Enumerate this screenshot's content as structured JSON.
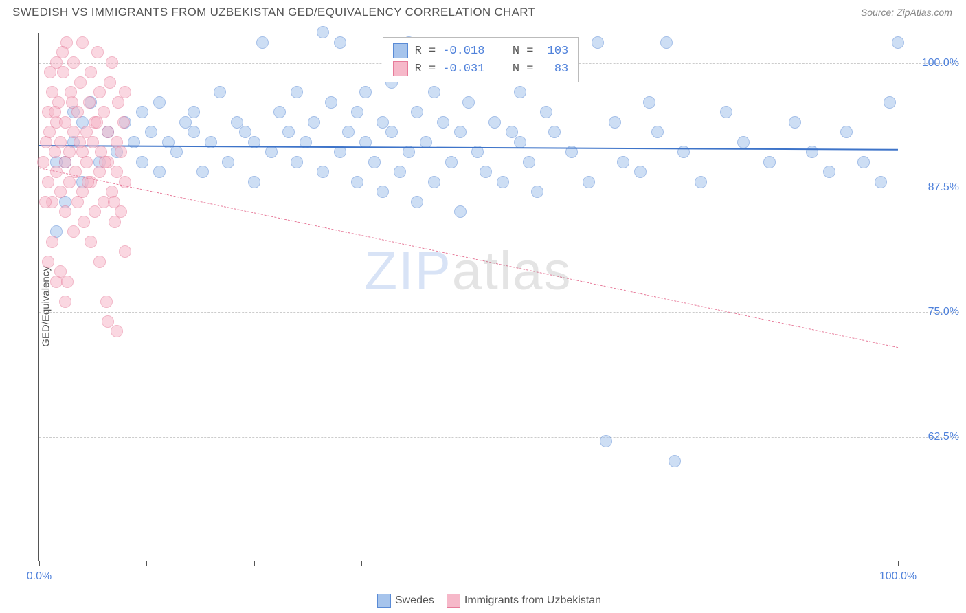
{
  "title": "SWEDISH VS IMMIGRANTS FROM UZBEKISTAN GED/EQUIVALENCY CORRELATION CHART",
  "source_label": "Source: ZipAtlas.com",
  "ylabel": "GED/Equivalency",
  "watermark_bold": "ZIP",
  "watermark_thin": "atlas",
  "chart": {
    "type": "scatter",
    "xlim": [
      0,
      100
    ],
    "ylim": [
      50,
      103
    ],
    "background_color": "#ffffff",
    "grid_color": "#cccccc",
    "axis_color": "#555555",
    "tick_label_color": "#5082db",
    "tick_fontsize": 16,
    "axis_label_fontsize": 15,
    "marker_radius": 9,
    "yticks": [
      {
        "v": 62.5,
        "label": "62.5%"
      },
      {
        "v": 75.0,
        "label": "75.0%"
      },
      {
        "v": 87.5,
        "label": "87.5%"
      },
      {
        "v": 100.0,
        "label": "100.0%"
      }
    ],
    "xticks": [
      0,
      12.5,
      25,
      37.5,
      50,
      62.5,
      75,
      87.5,
      100
    ],
    "xtick_labels": {
      "0": "0.0%",
      "100": "100.0%"
    },
    "series": [
      {
        "name": "Swedes",
        "fill_color": "#a6c4ec",
        "stroke_color": "#5a8bd6",
        "fill_opacity": 0.55,
        "regression": {
          "y_at_x0": 91.8,
          "y_at_x100": 91.4,
          "color": "#3e74c9",
          "width": 2,
          "dash": "solid"
        },
        "R": "-0.018",
        "N": "103",
        "points": [
          [
            2,
            83
          ],
          [
            3,
            90
          ],
          [
            4,
            92
          ],
          [
            5,
            88
          ],
          [
            5,
            94
          ],
          [
            6,
            96
          ],
          [
            7,
            90
          ],
          [
            8,
            93
          ],
          [
            9,
            91
          ],
          [
            10,
            94
          ],
          [
            11,
            92
          ],
          [
            12,
            95
          ],
          [
            12,
            90
          ],
          [
            13,
            93
          ],
          [
            14,
            96
          ],
          [
            14,
            89
          ],
          [
            15,
            92
          ],
          [
            16,
            91
          ],
          [
            17,
            94
          ],
          [
            18,
            95
          ],
          [
            18,
            93
          ],
          [
            19,
            89
          ],
          [
            20,
            92
          ],
          [
            21,
            97
          ],
          [
            22,
            90
          ],
          [
            23,
            94
          ],
          [
            24,
            93
          ],
          [
            25,
            88
          ],
          [
            25,
            92
          ],
          [
            26,
            102
          ],
          [
            27,
            91
          ],
          [
            28,
            95
          ],
          [
            29,
            93
          ],
          [
            30,
            90
          ],
          [
            30,
            97
          ],
          [
            31,
            92
          ],
          [
            32,
            94
          ],
          [
            33,
            89
          ],
          [
            33,
            103
          ],
          [
            34,
            96
          ],
          [
            35,
            91
          ],
          [
            35,
            102
          ],
          [
            36,
            93
          ],
          [
            37,
            88
          ],
          [
            37,
            95
          ],
          [
            38,
            92
          ],
          [
            38,
            97
          ],
          [
            39,
            90
          ],
          [
            40,
            94
          ],
          [
            40,
            87
          ],
          [
            41,
            93
          ],
          [
            41,
            98
          ],
          [
            42,
            89
          ],
          [
            43,
            91
          ],
          [
            43,
            102
          ],
          [
            44,
            95
          ],
          [
            44,
            86
          ],
          [
            45,
            92
          ],
          [
            46,
            97
          ],
          [
            46,
            88
          ],
          [
            47,
            94
          ],
          [
            48,
            90
          ],
          [
            49,
            93
          ],
          [
            49,
            85
          ],
          [
            50,
            96
          ],
          [
            51,
            91
          ],
          [
            52,
            89
          ],
          [
            53,
            94
          ],
          [
            54,
            88
          ],
          [
            55,
            93
          ],
          [
            56,
            92
          ],
          [
            56,
            97
          ],
          [
            57,
            90
          ],
          [
            58,
            87
          ],
          [
            59,
            95
          ],
          [
            60,
            93
          ],
          [
            62,
            91
          ],
          [
            64,
            88
          ],
          [
            65,
            102
          ],
          [
            66,
            62
          ],
          [
            67,
            94
          ],
          [
            68,
            90
          ],
          [
            70,
            89
          ],
          [
            71,
            96
          ],
          [
            72,
            93
          ],
          [
            73,
            102
          ],
          [
            74,
            60
          ],
          [
            75,
            91
          ],
          [
            77,
            88
          ],
          [
            80,
            95
          ],
          [
            82,
            92
          ],
          [
            85,
            90
          ],
          [
            88,
            94
          ],
          [
            90,
            91
          ],
          [
            92,
            89
          ],
          [
            94,
            93
          ],
          [
            96,
            90
          ],
          [
            98,
            88
          ],
          [
            99,
            96
          ],
          [
            100,
            102
          ],
          [
            2,
            90
          ],
          [
            3,
            86
          ],
          [
            4,
            95
          ]
        ]
      },
      {
        "name": "Immigrants from Uzbekistan",
        "fill_color": "#f6b8c9",
        "stroke_color": "#e77b9a",
        "fill_opacity": 0.55,
        "regression": {
          "y_at_x0": 89.5,
          "y_at_x100": 71.5,
          "color": "#e77b9a",
          "width": 1,
          "dash": "dashed"
        },
        "R": "-0.031",
        "N": "83",
        "points": [
          [
            0.5,
            90
          ],
          [
            0.8,
            92
          ],
          [
            1,
            95
          ],
          [
            1,
            88
          ],
          [
            1.2,
            93
          ],
          [
            1.5,
            97
          ],
          [
            1.5,
            86
          ],
          [
            1.8,
            91
          ],
          [
            2,
            100
          ],
          [
            2,
            94
          ],
          [
            2,
            89
          ],
          [
            2.2,
            96
          ],
          [
            2.5,
            87
          ],
          [
            2.5,
            92
          ],
          [
            2.8,
            99
          ],
          [
            3,
            90
          ],
          [
            3,
            85
          ],
          [
            3,
            94
          ],
          [
            3.2,
            102
          ],
          [
            3.5,
            88
          ],
          [
            3.5,
            91
          ],
          [
            3.8,
            96
          ],
          [
            4,
            100
          ],
          [
            4,
            93
          ],
          [
            4,
            83
          ],
          [
            4.2,
            89
          ],
          [
            4.5,
            86
          ],
          [
            4.5,
            95
          ],
          [
            4.8,
            98
          ],
          [
            5,
            91
          ],
          [
            5,
            102
          ],
          [
            5,
            87
          ],
          [
            5.2,
            84
          ],
          [
            5.5,
            93
          ],
          [
            5.5,
            90
          ],
          [
            5.8,
            96
          ],
          [
            6,
            99
          ],
          [
            6,
            88
          ],
          [
            6,
            82
          ],
          [
            6.2,
            92
          ],
          [
            6.5,
            85
          ],
          [
            6.5,
            94
          ],
          [
            6.8,
            101
          ],
          [
            7,
            89
          ],
          [
            7,
            97
          ],
          [
            7,
            80
          ],
          [
            7.2,
            91
          ],
          [
            7.5,
            86
          ],
          [
            7.5,
            95
          ],
          [
            7.8,
            76
          ],
          [
            8,
            90
          ],
          [
            8,
            93
          ],
          [
            8,
            74
          ],
          [
            8.2,
            98
          ],
          [
            8.5,
            87
          ],
          [
            8.5,
            100
          ],
          [
            8.8,
            84
          ],
          [
            9,
            92
          ],
          [
            9,
            89
          ],
          [
            9,
            73
          ],
          [
            9.2,
            96
          ],
          [
            9.5,
            91
          ],
          [
            9.5,
            85
          ],
          [
            9.8,
            94
          ],
          [
            10,
            88
          ],
          [
            10,
            97
          ],
          [
            10,
            81
          ],
          [
            1,
            80
          ],
          [
            2,
            78
          ],
          [
            3,
            76
          ],
          [
            1.5,
            82
          ],
          [
            2.5,
            79
          ],
          [
            3.3,
            78
          ],
          [
            1.8,
            95
          ],
          [
            0.7,
            86
          ],
          [
            1.3,
            99
          ],
          [
            2.7,
            101
          ],
          [
            3.7,
            97
          ],
          [
            4.7,
            92
          ],
          [
            5.7,
            88
          ],
          [
            6.7,
            94
          ],
          [
            7.7,
            90
          ],
          [
            8.7,
            86
          ]
        ]
      }
    ]
  },
  "bottom_legend": [
    {
      "label": "Swedes",
      "fill": "#a6c4ec",
      "stroke": "#5a8bd6"
    },
    {
      "label": "Immigrants from Uzbekistan",
      "fill": "#f6b8c9",
      "stroke": "#e77b9a"
    }
  ],
  "stats_legend": {
    "R_label": "R =",
    "N_label": "N ="
  }
}
